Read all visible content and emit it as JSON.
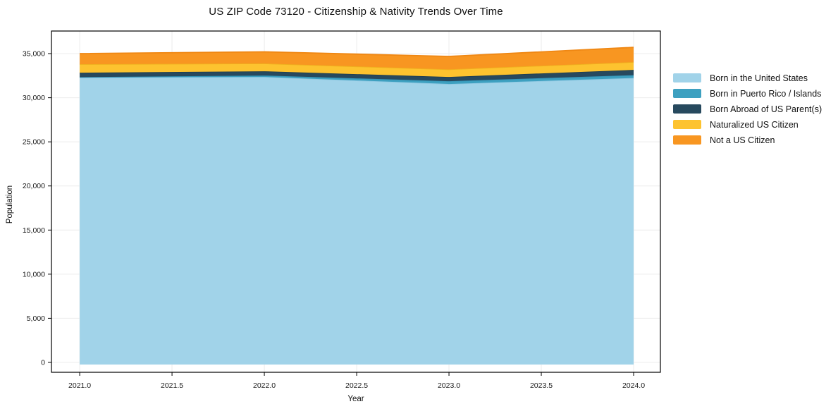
{
  "title": "US ZIP Code 73120 - Citizenship & Nativity Trends Over Time",
  "chart_data": {
    "type": "area",
    "stacked": true,
    "title": "US ZIP Code 73120 - Citizenship & Nativity Trends Over Time",
    "xlabel": "Year",
    "ylabel": "Population",
    "x": [
      2021,
      2022,
      2023,
      2024
    ],
    "series": [
      {
        "name": "Born in the United States",
        "color": "#A1D3E9",
        "edge_color": "#8FC8E2",
        "values": [
          32280,
          32360,
          31560,
          32240
        ]
      },
      {
        "name": "Born in Puerto Rico / Islands",
        "color": "#3DA0C0",
        "edge_color": "#3593B5",
        "values": [
          50,
          160,
          320,
          320
        ]
      },
      {
        "name": "Born Abroad of US Parent(s)",
        "color": "#27495E",
        "edge_color": "#203E50",
        "values": [
          510,
          480,
          480,
          600
        ]
      },
      {
        "name": "Naturalized US Citizen",
        "color": "#FDC32F",
        "edge_color": "#EFB01E",
        "values": [
          960,
          880,
          855,
          880
        ]
      },
      {
        "name": "Not a US Citizen",
        "color": "#F89621",
        "edge_color": "#EF8713",
        "values": [
          1200,
          1320,
          1465,
          1675
        ]
      }
    ],
    "totals": [
      35000,
      35200,
      34680,
      35715
    ],
    "x_ticks": [
      {
        "v": 2021.0,
        "label": "2021.0"
      },
      {
        "v": 2021.5,
        "label": "2021.5"
      },
      {
        "v": 2022.0,
        "label": "2022.0"
      },
      {
        "v": 2022.5,
        "label": "2022.5"
      },
      {
        "v": 2023.0,
        "label": "2023.0"
      },
      {
        "v": 2023.5,
        "label": "2023.5"
      },
      {
        "v": 2024.0,
        "label": "2024.0"
      }
    ],
    "y_ticks": [
      {
        "v": 0,
        "label": "0"
      },
      {
        "v": 5000,
        "label": "5,000"
      },
      {
        "v": 10000,
        "label": "10,000"
      },
      {
        "v": 15000,
        "label": "15,000"
      },
      {
        "v": 20000,
        "label": "20,000"
      },
      {
        "v": 25000,
        "label": "25,000"
      },
      {
        "v": 30000,
        "label": "30,000"
      },
      {
        "v": 35000,
        "label": "35,000"
      }
    ],
    "xlim": [
      2020.847,
      2024.145
    ],
    "ylim": [
      -1120,
      37560
    ],
    "grid": true,
    "grid_color": "#ececec",
    "spine_color": "#000000",
    "legend_position": "right-outside"
  }
}
